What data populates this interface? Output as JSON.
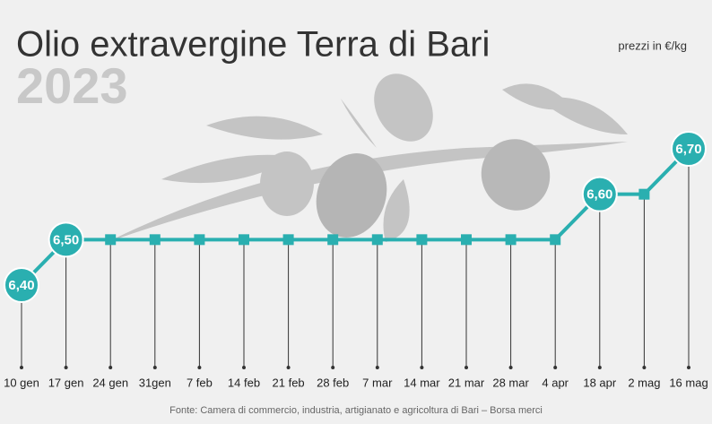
{
  "chart_data": {
    "type": "line",
    "title": "Olio extravergine Terra di Bari",
    "subtitle": "2023",
    "unit_note": "prezzi in €/kg",
    "source": "Fonte: Camera di commercio, industria, artigianato e agricoltura di Bari – Borsa merci",
    "categories": [
      "10 gen",
      "17 gen",
      "24 gen",
      "31gen",
      "7 feb",
      "14 feb",
      "21 feb",
      "28 feb",
      "7 mar",
      "14 mar",
      "21 mar",
      "28 mar",
      "4 apr",
      "18 apr",
      "2 mag",
      "16 mag"
    ],
    "values": [
      6.4,
      6.5,
      6.5,
      6.5,
      6.5,
      6.5,
      6.5,
      6.5,
      6.5,
      6.5,
      6.5,
      6.5,
      6.5,
      6.6,
      6.6,
      6.7
    ],
    "value_labels": [
      "6,40",
      "6,50",
      null,
      null,
      null,
      null,
      null,
      null,
      null,
      null,
      null,
      null,
      null,
      "6,60",
      null,
      "6,70"
    ],
    "color": "#2aafb0"
  }
}
